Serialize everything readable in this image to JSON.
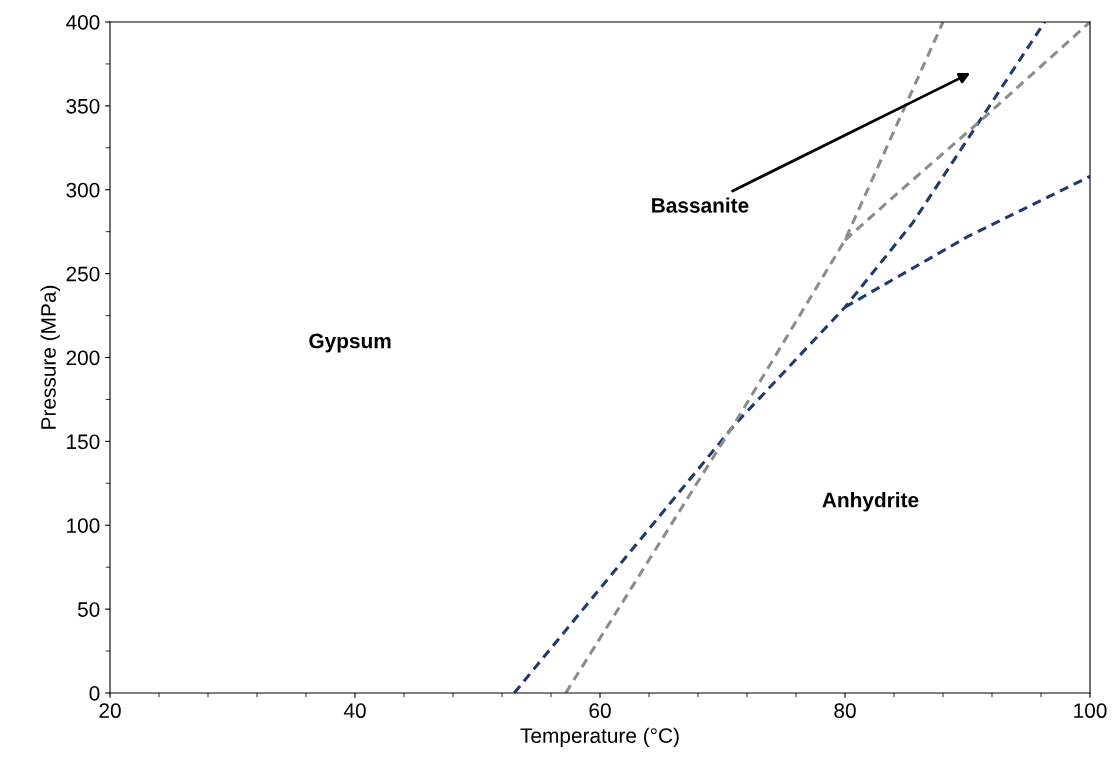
{
  "chart_data": {
    "type": "line",
    "xlabel": "Temperature (°C)",
    "ylabel": "Pressure (MPa)",
    "xlim": [
      20,
      100
    ],
    "xticks": [
      20,
      40,
      60,
      80,
      100
    ],
    "ylim": [
      0,
      400
    ],
    "yticks": [
      0,
      50,
      100,
      150,
      200,
      250,
      300,
      350,
      400
    ],
    "grid": false,
    "legend": false,
    "marker": "none",
    "line_style": "dashed",
    "series": [
      {
        "color": "#1f3a6e",
        "x": [
          53,
          62,
          71,
          80,
          85.5,
          96.3
        ],
        "values": [
          0,
          80,
          160,
          230,
          280,
          400
        ]
      },
      {
        "color": "#1f3a6e",
        "x": [
          80,
          90,
          100
        ],
        "values": [
          230,
          272,
          308
        ]
      },
      {
        "color": "#8c8c8c",
        "x": [
          57.2,
          71.6,
          80,
          88
        ],
        "values": [
          0,
          168,
          270,
          400
        ]
      },
      {
        "color": "#8c8c8c",
        "x": [
          80,
          84.3,
          91.2,
          100
        ],
        "values": [
          270,
          298,
          342,
          400
        ]
      }
    ],
    "annotations": [
      "Gypsum",
      "Anhydrite",
      "Bassanite"
    ]
  }
}
